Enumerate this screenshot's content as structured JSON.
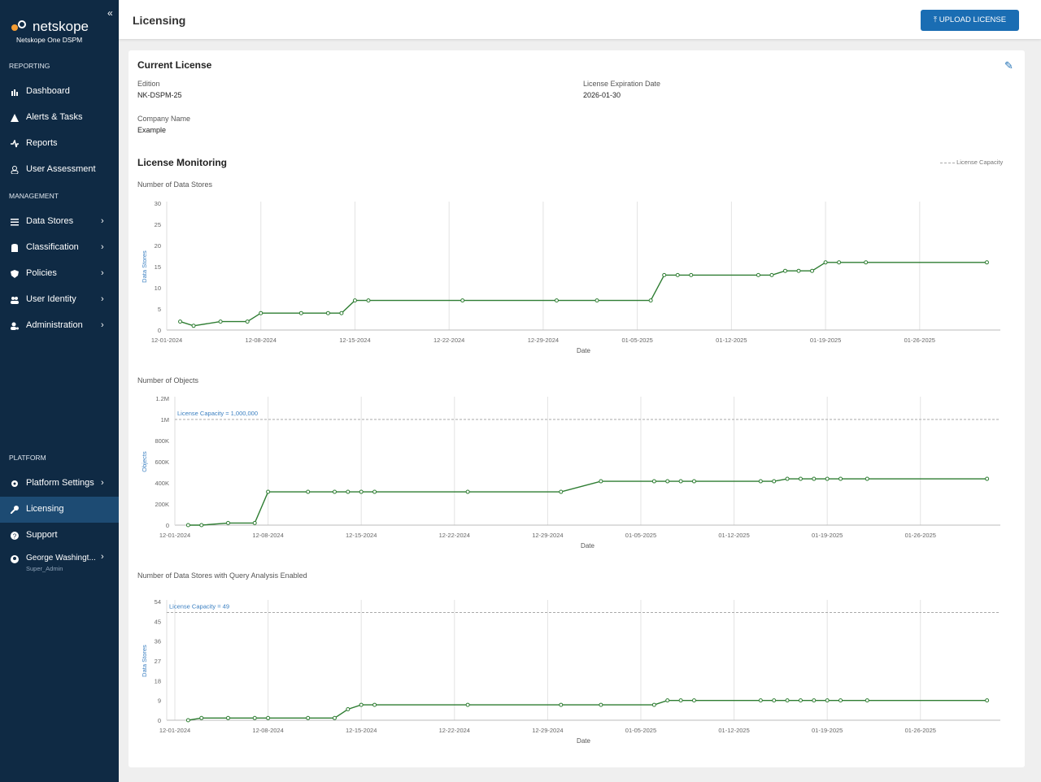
{
  "sidebar": {
    "brand": "netskope",
    "product": "Netskope One DSPM",
    "sections": [
      {
        "title": "REPORTING",
        "items": [
          "Dashboard",
          "Alerts & Tasks",
          "Reports",
          "User Assessment"
        ]
      },
      {
        "title": "MANAGEMENT",
        "items": [
          "Data Stores",
          "Classification",
          "Policies",
          "User Identity",
          "Administration"
        ]
      },
      {
        "title": "PLATFORM",
        "items": [
          "Platform Settings",
          "Licensing",
          "Support"
        ]
      }
    ],
    "user": {
      "name": "George Washingt...",
      "role": "Super_Admin"
    }
  },
  "header": {
    "title": "Licensing",
    "button": "UPLOAD LICENSE"
  },
  "current_license": {
    "title": "Current License",
    "fields": [
      {
        "label": "Edition",
        "value": "NK-DSPM-25"
      },
      {
        "label": "License Expiration Date",
        "value": "2026-01-30"
      },
      {
        "label": "Company Name",
        "value": "Example"
      }
    ]
  },
  "monitoring": {
    "title": "License Monitoring",
    "legend": "License Capacity"
  },
  "chart_data": [
    {
      "type": "line",
      "title": "Number of Data Stores",
      "x_label": "Date",
      "y_label": "Data Stores",
      "x": [
        "12-02-2024",
        "12-03-2024",
        "12-05-2024",
        "12-07-2024",
        "12-08-2024",
        "12-11-2024",
        "12-13-2024",
        "12-14-2024",
        "12-15-2024",
        "12-16-2024",
        "12-23-2024",
        "12-30-2024",
        "01-02-2025",
        "01-06-2025",
        "01-07-2025",
        "01-08-2025",
        "01-09-2025",
        "01-14-2025",
        "01-15-2025",
        "01-16-2025",
        "01-17-2025",
        "01-18-2025",
        "01-19-2025",
        "01-20-2025",
        "01-22-2025",
        "01-31-2025"
      ],
      "series": [
        {
          "color": "#2e7d32",
          "values": [
            2,
            1,
            2,
            2,
            4,
            4,
            4,
            4,
            7,
            7,
            7,
            7,
            7,
            7,
            13,
            13,
            13,
            13,
            13,
            14,
            14,
            14,
            16,
            16,
            16,
            16
          ]
        }
      ],
      "xlim": [
        "12-01-2024",
        "02-01-2025"
      ],
      "xticks": [
        "12-01-2024",
        "12-08-2024",
        "12-15-2024",
        "12-22-2024",
        "12-29-2024",
        "01-05-2025",
        "01-12-2025",
        "01-19-2025",
        "01-26-2025"
      ],
      "ylim": [
        0,
        30
      ],
      "yticks": [
        0,
        5,
        10,
        15,
        20,
        25,
        30
      ],
      "grid": "x"
    },
    {
      "type": "line",
      "title": "Number of Objects",
      "x_label": "Date",
      "y_label": "Objects",
      "x": [
        "12-02-2024",
        "12-03-2024",
        "12-05-2024",
        "12-07-2024",
        "12-08-2024",
        "12-11-2024",
        "12-13-2024",
        "12-14-2024",
        "12-15-2024",
        "12-16-2024",
        "12-23-2024",
        "12-30-2024",
        "01-02-2025",
        "01-06-2025",
        "01-07-2025",
        "01-08-2025",
        "01-09-2025",
        "01-14-2025",
        "01-15-2025",
        "01-16-2025",
        "01-17-2025",
        "01-18-2025",
        "01-19-2025",
        "01-20-2025",
        "01-22-2025",
        "01-31-2025"
      ],
      "series": [
        {
          "color": "#2e7d32",
          "values": [
            0,
            0,
            20000,
            20000,
            315000,
            315000,
            315000,
            315000,
            315000,
            315000,
            315000,
            315000,
            415000,
            415000,
            415000,
            415000,
            415000,
            415000,
            415000,
            438000,
            438000,
            438000,
            438000,
            438000,
            438000,
            438000
          ]
        }
      ],
      "reference_line": {
        "value": 1000000,
        "label": "License Capacity = 1,000,000"
      },
      "xlim": [
        "12-01-2024",
        "02-01-2025"
      ],
      "xticks": [
        "12-01-2024",
        "12-08-2024",
        "12-15-2024",
        "12-22-2024",
        "12-29-2024",
        "01-05-2025",
        "01-12-2025",
        "01-19-2025",
        "01-26-2025"
      ],
      "ylim": [
        0,
        1200000
      ],
      "yticks": [
        0,
        {
          "value": 200000,
          "label": "200K"
        },
        {
          "value": 400000,
          "label": "400K"
        },
        {
          "value": 600000,
          "label": "600K"
        },
        {
          "value": 800000,
          "label": "800K"
        },
        {
          "value": 1000000,
          "label": "1M"
        },
        {
          "value": 1200000,
          "label": "1.2M"
        }
      ],
      "grid": "x"
    },
    {
      "type": "line",
      "title": "Number of Data Stores with Query Analysis Enabled",
      "x_label": "Date",
      "y_label": "Data Stores",
      "x": [
        "12-02-2024",
        "12-03-2024",
        "12-05-2024",
        "12-07-2024",
        "12-08-2024",
        "12-11-2024",
        "12-13-2024",
        "12-14-2024",
        "12-15-2024",
        "12-16-2024",
        "12-23-2024",
        "12-30-2024",
        "01-02-2025",
        "01-06-2025",
        "01-07-2025",
        "01-08-2025",
        "01-09-2025",
        "01-14-2025",
        "01-15-2025",
        "01-16-2025",
        "01-17-2025",
        "01-18-2025",
        "01-19-2025",
        "01-20-2025",
        "01-22-2025",
        "01-31-2025"
      ],
      "series": [
        {
          "color": "#2e7d32",
          "values": [
            0,
            1,
            1,
            1,
            1,
            1,
            1,
            5,
            7,
            7,
            7,
            7,
            7,
            7,
            9,
            9,
            9,
            9,
            9,
            9,
            9,
            9,
            9,
            9,
            9,
            9
          ]
        }
      ],
      "reference_line": {
        "value": 49,
        "label": "License Capacity = 49"
      },
      "xlim": [
        "12-01-2024",
        "02-01-2025"
      ],
      "xticks": [
        "12-01-2024",
        "12-08-2024",
        "12-15-2024",
        "12-22-2024",
        "12-29-2024",
        "01-05-2025",
        "01-12-2025",
        "01-19-2025",
        "01-26-2025"
      ],
      "ylim": [
        0,
        54
      ],
      "yticks": [
        0,
        9,
        18,
        27,
        36,
        45,
        54
      ],
      "grid": "x"
    }
  ]
}
